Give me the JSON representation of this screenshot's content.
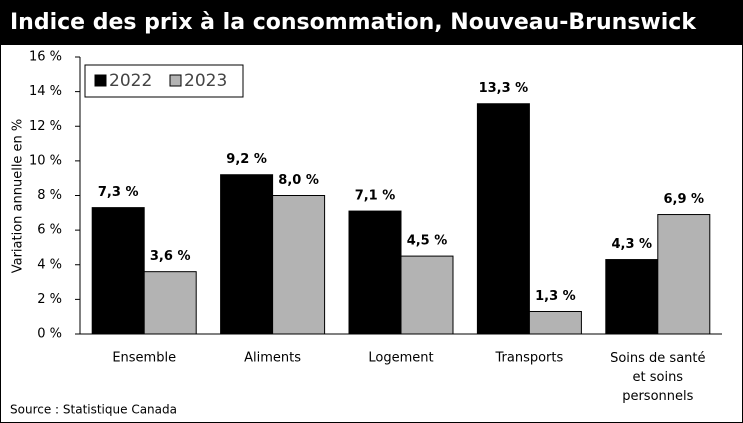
{
  "chart_data": {
    "type": "bar",
    "title": "Indice des prix à la consommation, Nouveau-Brunswick",
    "ylabel": "Variation annuelle en %",
    "source": "Source : Statistique Canada",
    "categories": [
      "Ensemble",
      "Aliments",
      "Logement",
      "Transports",
      "Soins de santé et soins personnels"
    ],
    "series": [
      {
        "name": "2022",
        "color": "#000000",
        "values": [
          7.3,
          9.2,
          7.1,
          13.3,
          4.3
        ],
        "value_labels": [
          "7,3 %",
          "9,2 %",
          "7,1 %",
          "13,3 %",
          "4,3 %"
        ]
      },
      {
        "name": "2023",
        "color": "#b3b3b3",
        "values": [
          3.6,
          8.0,
          4.5,
          1.3,
          6.9
        ],
        "value_labels": [
          "3,6 %",
          "8,0 %",
          "4,5 %",
          "1,3 %",
          "6,9 %"
        ]
      }
    ],
    "ylim": [
      0,
      16
    ],
    "yticks": [
      {
        "value": 0,
        "label": "0 %"
      },
      {
        "value": 2,
        "label": "2 %"
      },
      {
        "value": 4,
        "label": "4 %"
      },
      {
        "value": 6,
        "label": "6 %"
      },
      {
        "value": 8,
        "label": "8 %"
      },
      {
        "value": 10,
        "label": "10 %"
      },
      {
        "value": 12,
        "label": "12 %"
      },
      {
        "value": 14,
        "label": "14 %"
      },
      {
        "value": 16,
        "label": "16 %"
      }
    ],
    "legend": "top-left"
  }
}
